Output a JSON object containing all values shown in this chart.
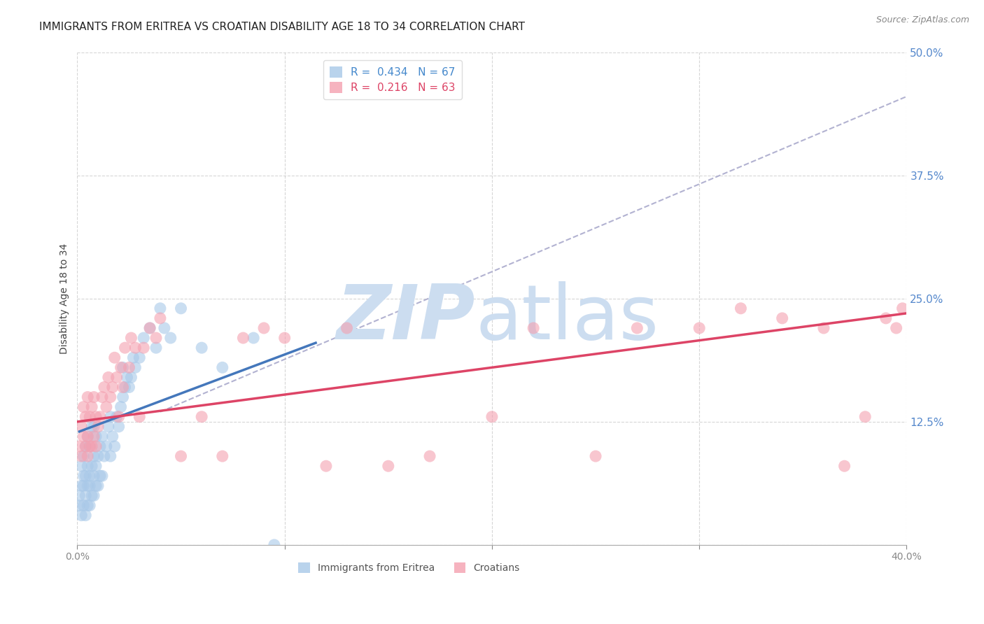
{
  "title": "IMMIGRANTS FROM ERITREA VS CROATIAN DISABILITY AGE 18 TO 34 CORRELATION CHART",
  "source": "Source: ZipAtlas.com",
  "ylabel": "Disability Age 18 to 34",
  "xlim": [
    0.0,
    0.4
  ],
  "ylim": [
    0.0,
    0.5
  ],
  "xticks": [
    0.0,
    0.1,
    0.2,
    0.3,
    0.4
  ],
  "xtick_labels": [
    "0.0%",
    "",
    "",
    "",
    "40.0%"
  ],
  "yticks": [
    0.0,
    0.125,
    0.25,
    0.375,
    0.5
  ],
  "ytick_labels": [
    "",
    "12.5%",
    "25.0%",
    "37.5%",
    "50.0%"
  ],
  "color_eritrea": "#a8c8e8",
  "color_croatian": "#f4a0b0",
  "color_line_eritrea": "#4477bb",
  "color_line_croatian": "#dd4466",
  "color_diag": "#aaaacc",
  "r_eritrea": 0.434,
  "n_eritrea": 67,
  "r_croatian": 0.216,
  "n_croatian": 63,
  "background_color": "#ffffff",
  "grid_color": "#cccccc",
  "title_fontsize": 11,
  "axis_label_fontsize": 10,
  "tick_fontsize": 10,
  "watermark_color": "#ccddf0",
  "eritrea_x": [
    0.001,
    0.001,
    0.002,
    0.002,
    0.002,
    0.003,
    0.003,
    0.003,
    0.003,
    0.004,
    0.004,
    0.004,
    0.004,
    0.005,
    0.005,
    0.005,
    0.005,
    0.006,
    0.006,
    0.006,
    0.006,
    0.007,
    0.007,
    0.007,
    0.008,
    0.008,
    0.008,
    0.008,
    0.009,
    0.009,
    0.009,
    0.01,
    0.01,
    0.011,
    0.011,
    0.012,
    0.012,
    0.013,
    0.014,
    0.015,
    0.016,
    0.016,
    0.017,
    0.018,
    0.019,
    0.02,
    0.021,
    0.022,
    0.022,
    0.023,
    0.024,
    0.025,
    0.026,
    0.027,
    0.028,
    0.03,
    0.032,
    0.035,
    0.038,
    0.04,
    0.042,
    0.045,
    0.05,
    0.06,
    0.07,
    0.085,
    0.095
  ],
  "eritrea_y": [
    0.04,
    0.05,
    0.03,
    0.06,
    0.08,
    0.04,
    0.06,
    0.07,
    0.09,
    0.03,
    0.05,
    0.07,
    0.1,
    0.04,
    0.06,
    0.08,
    0.11,
    0.04,
    0.06,
    0.07,
    0.1,
    0.05,
    0.08,
    0.12,
    0.05,
    0.07,
    0.09,
    0.12,
    0.06,
    0.08,
    0.11,
    0.06,
    0.09,
    0.07,
    0.1,
    0.07,
    0.11,
    0.09,
    0.1,
    0.12,
    0.09,
    0.13,
    0.11,
    0.1,
    0.13,
    0.12,
    0.14,
    0.15,
    0.18,
    0.16,
    0.17,
    0.16,
    0.17,
    0.19,
    0.18,
    0.19,
    0.21,
    0.22,
    0.2,
    0.24,
    0.22,
    0.21,
    0.24,
    0.2,
    0.18,
    0.21,
    0.0
  ],
  "croatian_x": [
    0.001,
    0.002,
    0.002,
    0.003,
    0.003,
    0.004,
    0.004,
    0.005,
    0.005,
    0.005,
    0.006,
    0.006,
    0.007,
    0.007,
    0.008,
    0.008,
    0.009,
    0.009,
    0.01,
    0.011,
    0.012,
    0.013,
    0.014,
    0.015,
    0.016,
    0.017,
    0.018,
    0.019,
    0.02,
    0.021,
    0.022,
    0.023,
    0.025,
    0.026,
    0.028,
    0.03,
    0.032,
    0.035,
    0.038,
    0.04,
    0.05,
    0.06,
    0.07,
    0.08,
    0.09,
    0.1,
    0.12,
    0.13,
    0.15,
    0.17,
    0.2,
    0.22,
    0.25,
    0.27,
    0.3,
    0.32,
    0.34,
    0.36,
    0.37,
    0.38,
    0.39,
    0.395,
    0.398
  ],
  "croatian_y": [
    0.1,
    0.09,
    0.12,
    0.11,
    0.14,
    0.1,
    0.13,
    0.09,
    0.11,
    0.15,
    0.1,
    0.13,
    0.1,
    0.14,
    0.11,
    0.15,
    0.1,
    0.13,
    0.12,
    0.13,
    0.15,
    0.16,
    0.14,
    0.17,
    0.15,
    0.16,
    0.19,
    0.17,
    0.13,
    0.18,
    0.16,
    0.2,
    0.18,
    0.21,
    0.2,
    0.13,
    0.2,
    0.22,
    0.21,
    0.23,
    0.09,
    0.13,
    0.09,
    0.21,
    0.22,
    0.21,
    0.08,
    0.22,
    0.08,
    0.09,
    0.13,
    0.22,
    0.09,
    0.22,
    0.22,
    0.24,
    0.23,
    0.22,
    0.08,
    0.13,
    0.23,
    0.22,
    0.24
  ],
  "eritrea_line_x": [
    0.001,
    0.115
  ],
  "eritrea_line_y": [
    0.115,
    0.205
  ],
  "croatian_line_x": [
    0.0,
    0.4
  ],
  "croatian_line_y": [
    0.125,
    0.235
  ],
  "diag_line_x": [
    0.04,
    0.4
  ],
  "diag_line_y": [
    0.135,
    0.455
  ]
}
